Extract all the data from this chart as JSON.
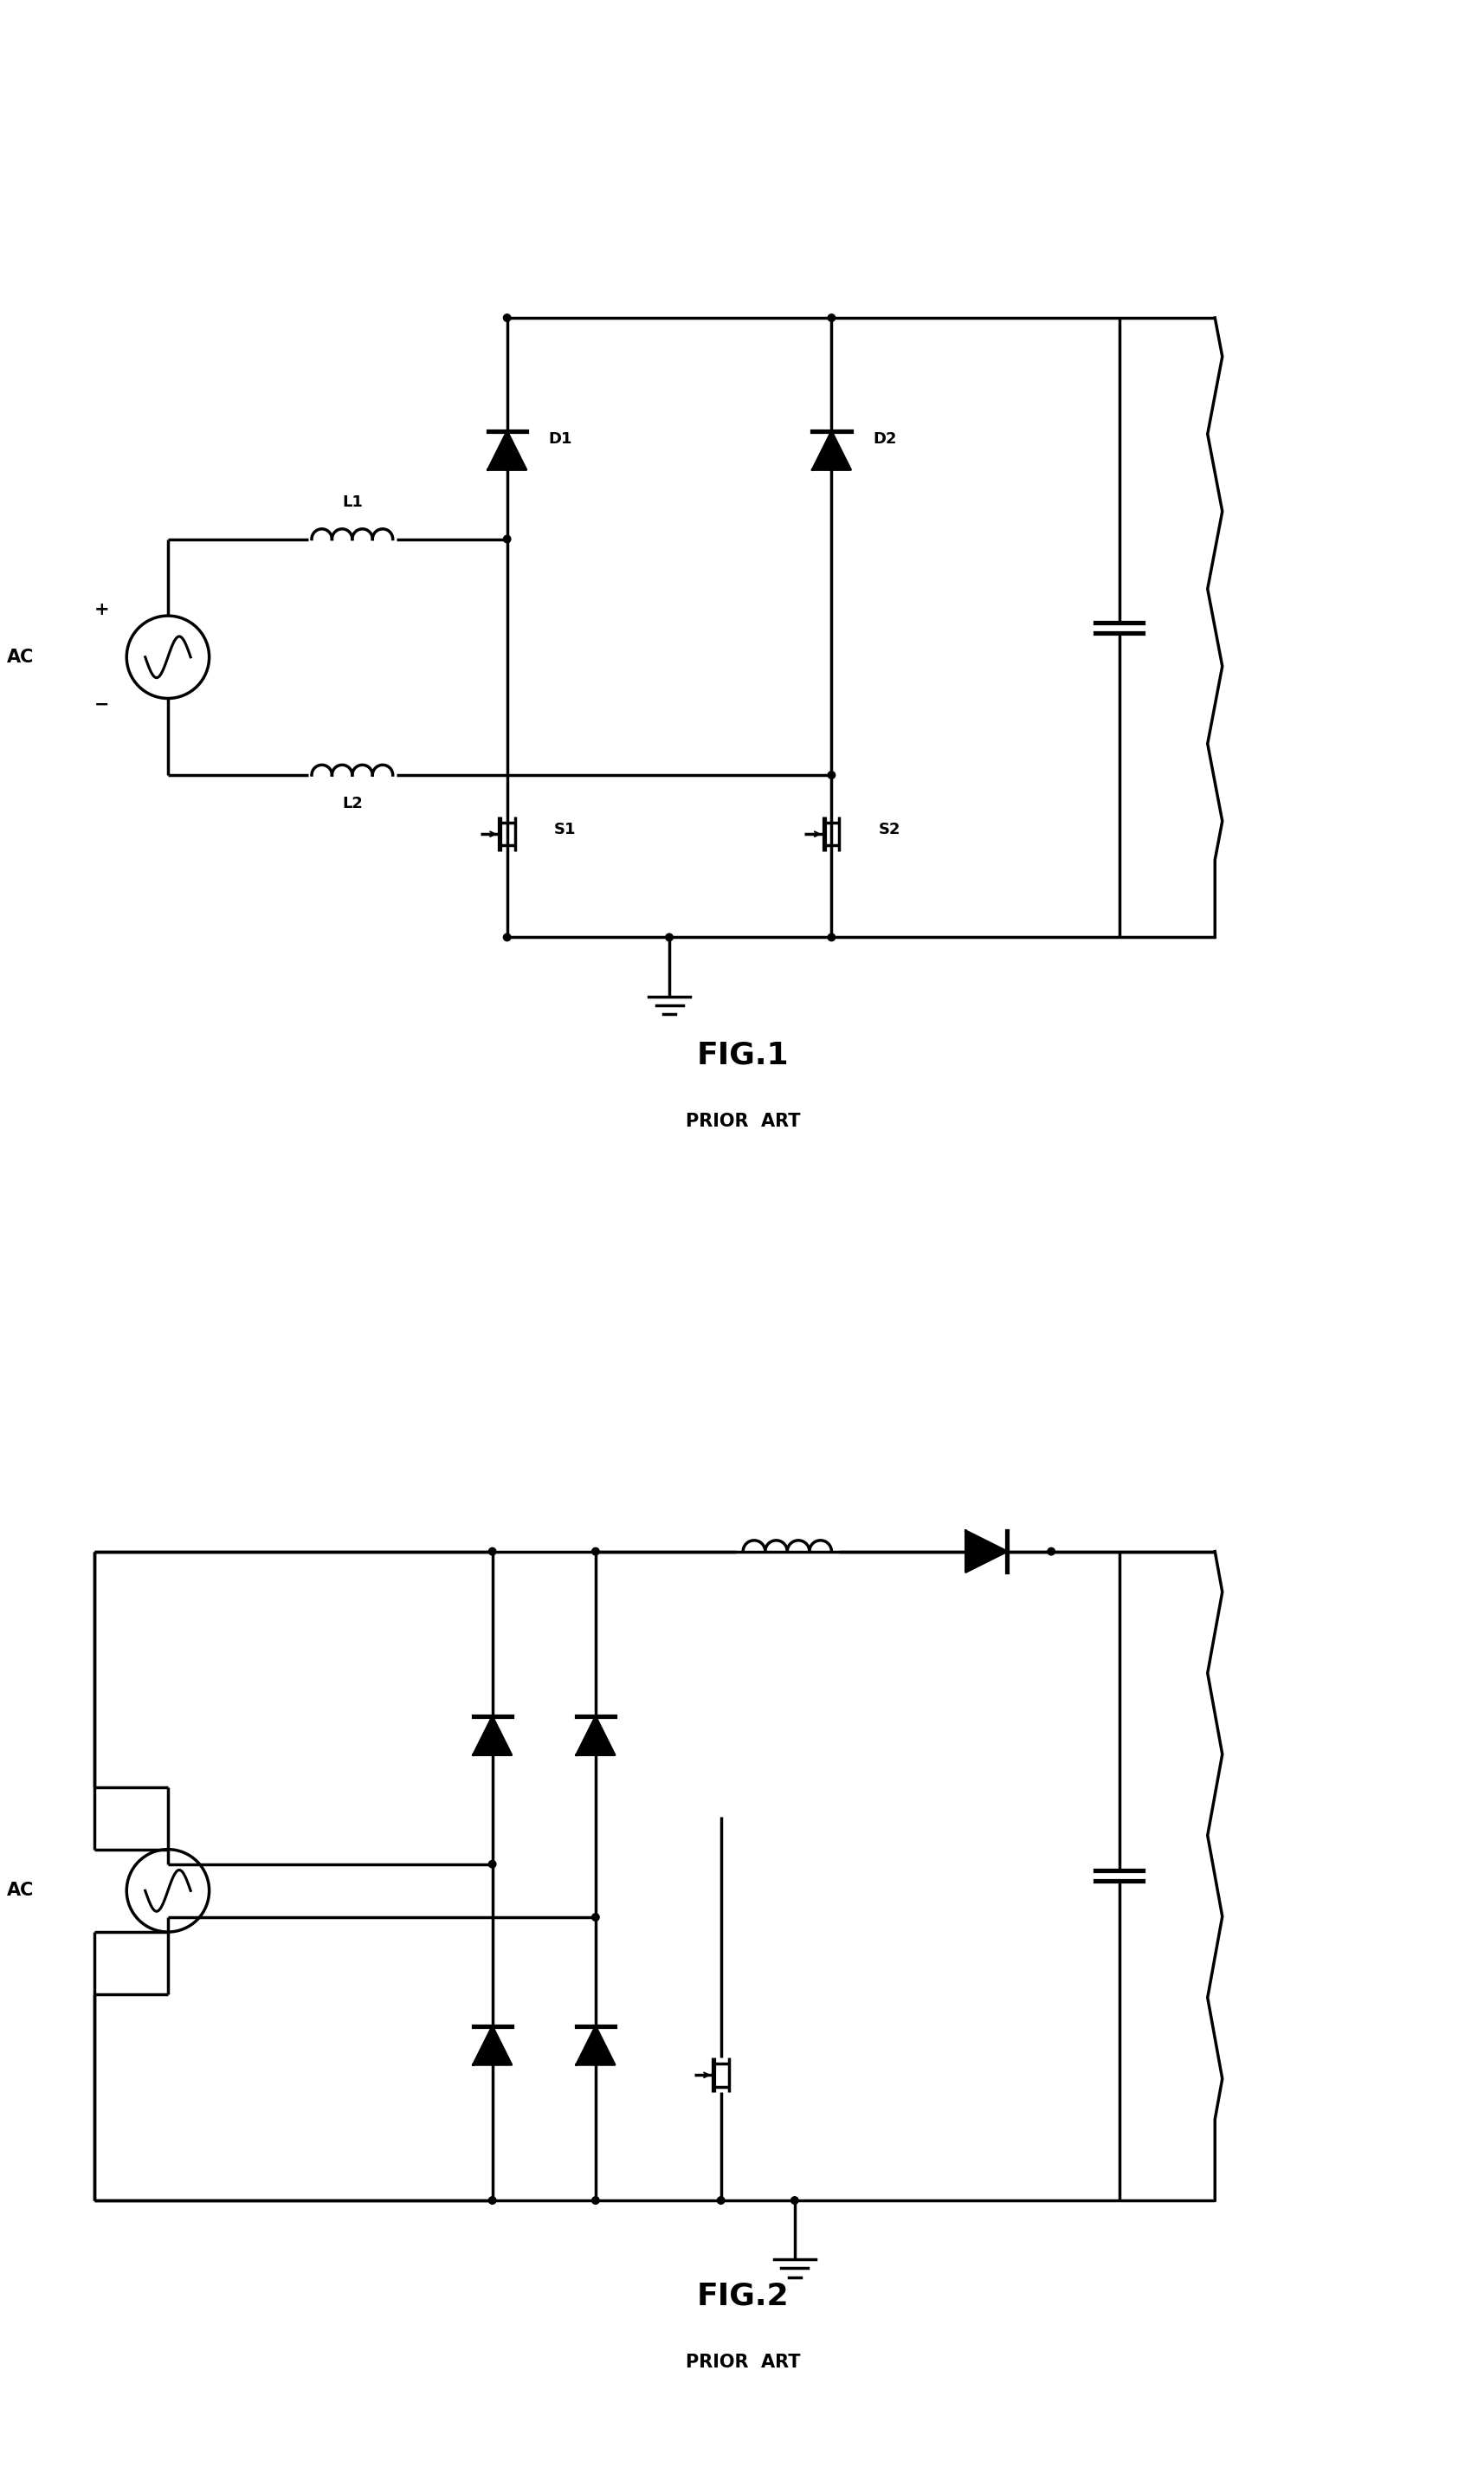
{
  "background_color": "#ffffff",
  "line_color": "#000000",
  "lw": 2.5,
  "fig1_title": "FIG.1",
  "fig1_subtitle": "PRIOR  ART",
  "fig2_title": "FIG.2",
  "fig2_subtitle": "PRIOR  ART"
}
